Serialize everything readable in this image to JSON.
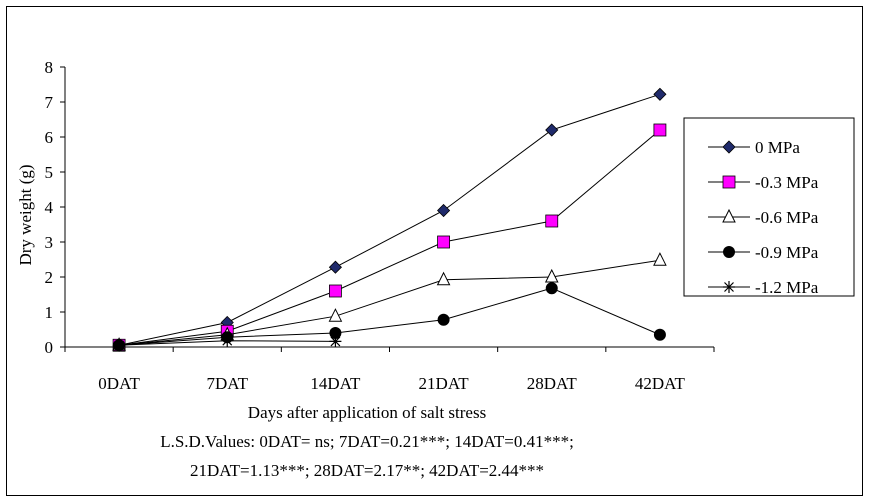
{
  "chart_data": {
    "type": "line",
    "title": "",
    "categories": [
      "0DAT",
      "7DAT",
      "14DAT",
      "21DAT",
      "28DAT",
      "42DAT"
    ],
    "xlabel": "Days after application of salt stress",
    "ylabel": "Dry weight (g)",
    "ylim": [
      0,
      8
    ],
    "yticks": [
      "0",
      "1",
      "2",
      "3",
      "4",
      "5",
      "6",
      "7",
      "8"
    ],
    "grid": false,
    "legend_position": "right",
    "notes": [
      "L.S.D.Values: 0DAT= ns; 7DAT=0.21***; 14DAT=0.41***;",
      "21DAT=1.13***; 28DAT=2.17**; 42DAT=2.44***"
    ],
    "series": [
      {
        "name": "0 MPa",
        "marker": "diamond",
        "color": "#1f2a6b",
        "values": [
          0.05,
          0.7,
          2.28,
          3.9,
          6.2,
          7.22
        ]
      },
      {
        "name": "-0.3 MPa",
        "marker": "square",
        "color": "#ff00ff",
        "values": [
          0.05,
          0.45,
          1.6,
          3.0,
          3.6,
          6.2
        ]
      },
      {
        "name": "-0.6 MPa",
        "marker": "triangle",
        "color": "#ffffff",
        "values": [
          0.05,
          0.35,
          0.88,
          1.92,
          2.0,
          2.48
        ]
      },
      {
        "name": "-0.9 MPa",
        "marker": "circle",
        "color": "#000000",
        "values": [
          0.05,
          0.28,
          0.4,
          0.78,
          1.68,
          0.35
        ]
      },
      {
        "name": "-1.2 MPa",
        "marker": "star",
        "color": "#000000",
        "values": [
          0.05,
          0.18,
          0.16,
          null,
          null,
          null
        ]
      }
    ]
  }
}
